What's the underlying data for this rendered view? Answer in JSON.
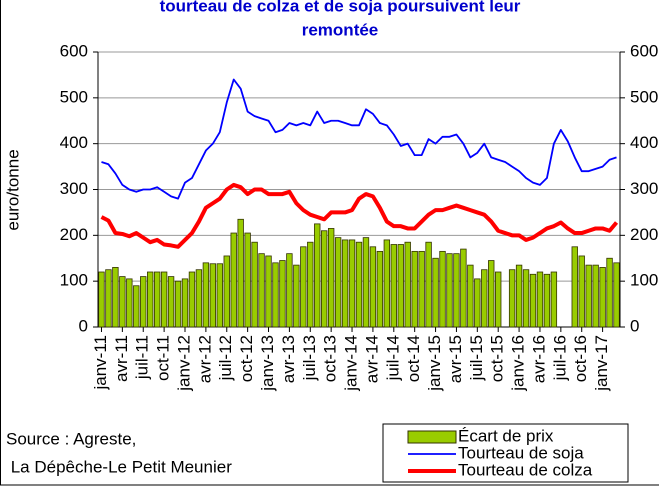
{
  "chart_data": {
    "type": "bar",
    "title": [
      "tourteau de colza  et de soja poursuivent leur",
      "remontée"
    ],
    "y_label": "euro/tonne",
    "source": [
      "Source : Agreste,",
      " La Dépêche-Le Petit Meunier"
    ],
    "categories": [
      "janv-11",
      null,
      null,
      "avr-11",
      null,
      null,
      "juil-11",
      null,
      null,
      "oct-11",
      null,
      null,
      "janv-12",
      null,
      null,
      "avr-12",
      null,
      null,
      "juil-12",
      null,
      null,
      "oct-12",
      null,
      null,
      "janv-13",
      null,
      null,
      "avr-13",
      null,
      null,
      "juil-13",
      null,
      null,
      "oct-13",
      null,
      null,
      "janv-14",
      null,
      null,
      "avr-14",
      null,
      null,
      "juil-14",
      null,
      null,
      "oct-14",
      null,
      null,
      "janv-15",
      null,
      null,
      "avr-15",
      null,
      null,
      "juil-15",
      null,
      null,
      "oct-15",
      null,
      null,
      "janv-16",
      null,
      null,
      "avr-16",
      null,
      null,
      "juil-16",
      null,
      null,
      "oct-16",
      null,
      null,
      "janv-17",
      null,
      null
    ],
    "series": [
      {
        "name": "Écart de prix",
        "type": "bar",
        "color": "#99cc00",
        "values": [
          120,
          125,
          130,
          110,
          105,
          90,
          110,
          120,
          120,
          120,
          110,
          100,
          105,
          120,
          125,
          140,
          138,
          138,
          155,
          205,
          235,
          205,
          185,
          160,
          155,
          140,
          145,
          160,
          135,
          175,
          185,
          225,
          210,
          215,
          195,
          190,
          190,
          185,
          195,
          175,
          165,
          190,
          180,
          180,
          185,
          165,
          165,
          185,
          150,
          165,
          160,
          160,
          170,
          135,
          105,
          125,
          145,
          120,
          null,
          125,
          135,
          125,
          115,
          120,
          115,
          120,
          null,
          null,
          175,
          155,
          135,
          135,
          130,
          150,
          140
        ]
      },
      {
        "name": "Tourteau de soja",
        "type": "line",
        "color": "#0000ff",
        "values": [
          360,
          355,
          335,
          310,
          300,
          295,
          300,
          300,
          305,
          295,
          285,
          280,
          315,
          325,
          355,
          385,
          400,
          425,
          490,
          540,
          520,
          470,
          460,
          455,
          450,
          425,
          430,
          445,
          440,
          445,
          440,
          470,
          445,
          450,
          450,
          445,
          440,
          440,
          475,
          465,
          445,
          440,
          420,
          395,
          400,
          375,
          375,
          410,
          400,
          415,
          415,
          420,
          400,
          370,
          380,
          400,
          370,
          365,
          360,
          350,
          340,
          325,
          315,
          310,
          325,
          400,
          430,
          405,
          370,
          340,
          340,
          345,
          350,
          365,
          370
        ]
      },
      {
        "name": "Tourteau de colza",
        "type": "line",
        "color": "#ff0000",
        "values": [
          240,
          232,
          205,
          203,
          198,
          205,
          195,
          185,
          190,
          180,
          178,
          175,
          190,
          205,
          230,
          260,
          270,
          280,
          300,
          310,
          305,
          290,
          300,
          300,
          290,
          290,
          290,
          295,
          270,
          255,
          245,
          240,
          235,
          250,
          250,
          250,
          255,
          280,
          290,
          285,
          260,
          230,
          220,
          220,
          215,
          215,
          230,
          245,
          255,
          255,
          260,
          265,
          260,
          255,
          250,
          245,
          230,
          210,
          205,
          200,
          200,
          190,
          195,
          205,
          215,
          220,
          228,
          215,
          205,
          205,
          210,
          215,
          215,
          210,
          228
        ]
      }
    ],
    "ylim": [
      0,
      600
    ],
    "yticks": [
      0,
      100,
      200,
      300,
      400,
      500,
      600
    ],
    "y2lim": [
      0,
      600
    ],
    "y2ticks": [
      0,
      100,
      200,
      300,
      400,
      500,
      600
    ],
    "grid": true
  }
}
